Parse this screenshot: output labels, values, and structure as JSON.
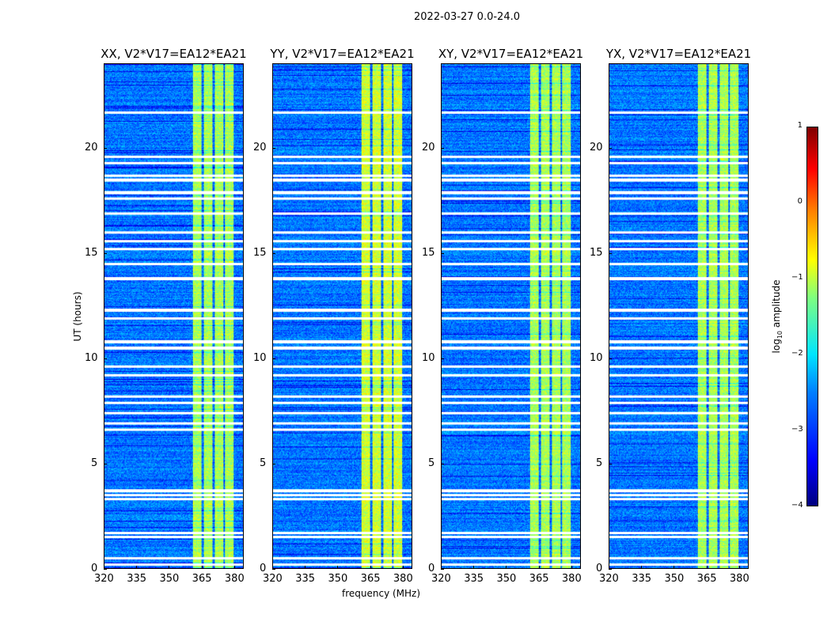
{
  "chart_data": {
    "type": "heatmap",
    "title": "2022-03-27 0.0-24.0",
    "panels": [
      {
        "title": "XX, V2*V17=EA12*EA21"
      },
      {
        "title": "YY, V2*V17=EA12*EA21"
      },
      {
        "title": "XY, V2*V17=EA12*EA21"
      },
      {
        "title": "YX, V2*V17=EA12*EA21"
      }
    ],
    "xlabel": "frequency (MHz)",
    "ylabel": "UT (hours)",
    "xlim": [
      320,
      384.4
    ],
    "ylim": [
      0,
      24
    ],
    "xticks": [
      "320",
      "335",
      "350",
      "365",
      "380"
    ],
    "xtick_values": [
      320,
      335,
      350,
      365,
      380
    ],
    "yticks": [
      "0",
      "5",
      "10",
      "15",
      "20"
    ],
    "ytick_values": [
      0,
      5,
      10,
      15,
      20
    ],
    "colorbar": {
      "label": "log10 amplitude",
      "label_main": "log",
      "label_sub": "10",
      "label_rest": " amplitude",
      "range": [
        -4,
        1
      ],
      "ticks": [
        "1",
        "0",
        "−1",
        "−2",
        "−3",
        "−4"
      ],
      "tick_values": [
        1,
        0,
        -1,
        -2,
        -3,
        -4
      ],
      "colormap": "jet"
    },
    "background_log_amplitude": -2.8,
    "rfi_bands_mhz": [
      [
        361,
        365
      ],
      [
        366,
        370
      ],
      [
        371,
        375
      ],
      [
        376,
        380
      ]
    ],
    "rfi_log_amplitude": -1.3,
    "flagged_hours": [
      0.2,
      0.5,
      1.5,
      1.7,
      3.3,
      3.5,
      3.7,
      6.6,
      6.9,
      7.4,
      7.9,
      8.2,
      9.2,
      9.6,
      10.5,
      10.8,
      11.9,
      12.3,
      13.8,
      14.5,
      15.2,
      15.6,
      16.0,
      16.9,
      17.6,
      17.9,
      18.5,
      18.7,
      19.3,
      19.6,
      21.7
    ]
  }
}
